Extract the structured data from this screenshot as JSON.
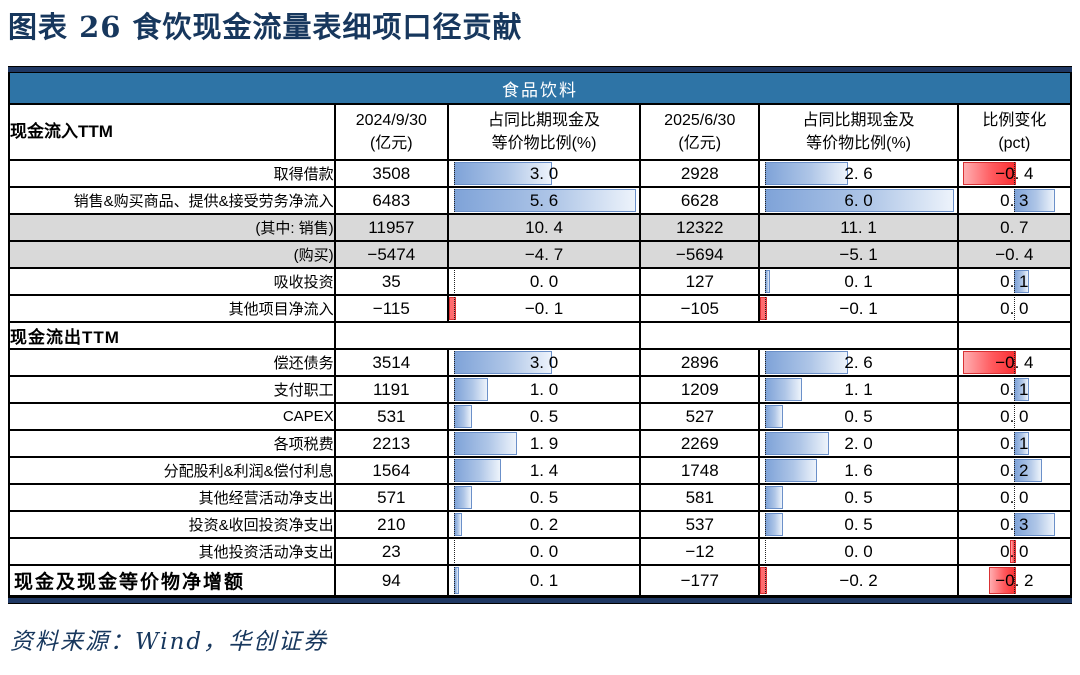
{
  "title": "图表 26  食饮现金流量表细项口径贡献",
  "source_note": "资料来源：Wind，华创证券",
  "sector_label": "食品饮料",
  "colors": {
    "title_navy": "#17375D",
    "band_blue": "#2E74A6",
    "navy_border": "#1F3864",
    "row_gray": "#D9D9D9",
    "bar_blue_border": "#6B90C9",
    "bar_blue_solid": "#7FA3D8",
    "bar_red_solid": "#FF2F34",
    "bar_red_border": "#D93134"
  },
  "header": {
    "col1": "现金流入TTM",
    "col2_line1": "2024/9/30",
    "col2_line2": "(亿元)",
    "col3_line1": "占同比期现金及",
    "col3_line2": "等价物比例(%)",
    "col4_line1": "2025/6/30",
    "col4_line2": "(亿元)",
    "col5_line1": "占同比期现金及",
    "col5_line2": "等价物比例(%)",
    "col6_line1": "比例变化",
    "col6_line2": "(pct)"
  },
  "chart_data": {
    "type": "table",
    "title": "食品饮料",
    "columns": [
      "现金流入TTM",
      "2024/9/30 (亿元)",
      "占同比期现金及等价物比例(%)",
      "2025/6/30 (亿元)",
      "占同比期现金及等价物比例(%)",
      "比例变化 (pct)"
    ],
    "bar_axis": {
      "p1_max": 5.6,
      "p2_max": 6.0,
      "chg_max": 0.4
    },
    "rows": [
      {
        "label": "取得借款",
        "v1": "3508",
        "p1": "3. 0",
        "v2": "2928",
        "p2": "2. 6",
        "chg": "−0. 4"
      },
      {
        "label": "销售&购买商品、提供&接受劳务净流入",
        "v1": "6483",
        "p1": "5. 6",
        "v2": "6628",
        "p2": "6. 0",
        "chg": "0. 3"
      },
      {
        "label": "(其中: 销售)",
        "v1": "11957",
        "p1": "10. 4",
        "v2": "12322",
        "p2": "11. 1",
        "chg": "0. 7",
        "gray": true,
        "nobars": true
      },
      {
        "label": "(购买)",
        "v1": "−5474",
        "p1": "−4. 7",
        "v2": "−5694",
        "p2": "−5. 1",
        "chg": "−0. 4",
        "gray": true,
        "nobars": true
      },
      {
        "label": "吸收投资",
        "v1": "35",
        "p1": "0. 0",
        "v2": "127",
        "p2": "0. 1",
        "chg": "0. 1"
      },
      {
        "label": "其他项目净流入",
        "v1": "−115",
        "p1": "−0. 1",
        "v2": "−105",
        "p2": "−0. 1",
        "chg": "0. 0"
      },
      {
        "label": "现金流出TTM",
        "section": true
      },
      {
        "label": "偿还债务",
        "v1": "3514",
        "p1": "3. 0",
        "v2": "2896",
        "p2": "2. 6",
        "chg": "−0. 4"
      },
      {
        "label": "支付职工",
        "v1": "1191",
        "p1": "1. 0",
        "v2": "1209",
        "p2": "1. 1",
        "chg": "0. 1"
      },
      {
        "label": "CAPEX",
        "v1": "531",
        "p1": "0. 5",
        "v2": "527",
        "p2": "0. 5",
        "chg": "0. 0"
      },
      {
        "label": "各项税费",
        "v1": "2213",
        "p1": "1. 9",
        "v2": "2269",
        "p2": "2. 0",
        "chg": "0. 1"
      },
      {
        "label": "分配股利&利润&偿付利息",
        "v1": "1564",
        "p1": "1. 4",
        "v2": "1748",
        "p2": "1. 6",
        "chg": "0. 2"
      },
      {
        "label": "其他经营活动净支出",
        "v1": "571",
        "p1": "0. 5",
        "v2": "581",
        "p2": "0. 5",
        "chg": "0. 0"
      },
      {
        "label": "投资&收回投资净支出",
        "v1": "210",
        "p1": "0. 2",
        "v2": "537",
        "p2": "0. 5",
        "chg": "0. 3"
      },
      {
        "label": "其他投资活动净支出",
        "v1": "23",
        "p1": "0. 0",
        "v2": "−12",
        "p2": "0. 0",
        "chg": "0. 0",
        "chg_bar": -0.03
      },
      {
        "label": "现金及现金等价物净增额",
        "v1": "94",
        "p1": "0. 1",
        "v2": "−177",
        "p2": "−0. 2",
        "chg": "−0. 2",
        "total": true
      }
    ]
  }
}
